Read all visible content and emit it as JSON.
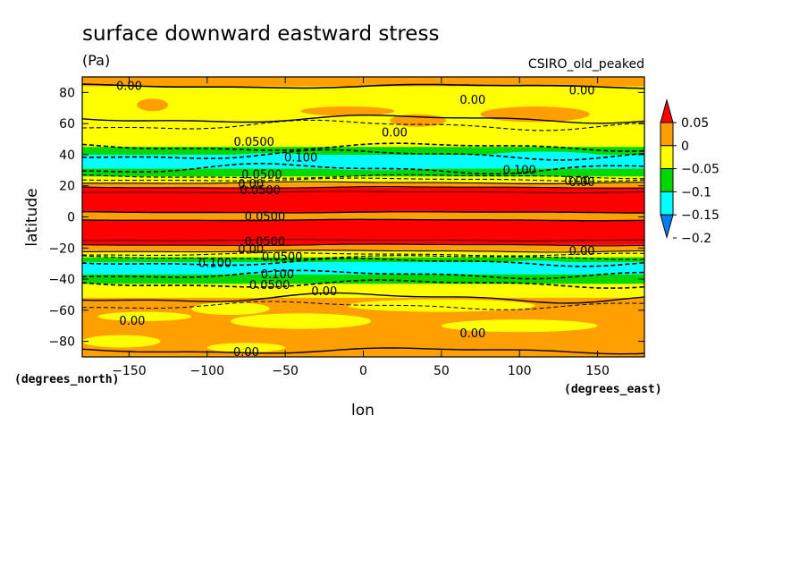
{
  "chart_data": {
    "type": "heatmap",
    "title": "surface downward eastward stress",
    "units": "(Pa)",
    "annotation": "CSIRO_old_peaked",
    "xlabel": "lon",
    "ylabel": "latitude",
    "x_units_label": "(degrees_east)",
    "y_units_label": "(degrees_north)",
    "xlim": [
      -180,
      180
    ],
    "ylim": [
      -90,
      90
    ],
    "x_ticks": [
      -150,
      -100,
      -50,
      0,
      50,
      100,
      150
    ],
    "x_tick_labels": [
      "−150",
      "−100",
      "−50",
      "0",
      "50",
      "100",
      "150"
    ],
    "y_ticks": [
      80,
      60,
      40,
      20,
      0,
      -20,
      -40,
      -60,
      -80
    ],
    "y_tick_labels": [
      "80",
      "60",
      "40",
      "20",
      "0",
      "−20",
      "−40",
      "−60",
      "−80"
    ],
    "colorbar": {
      "levels": [
        0.05,
        0,
        -0.05,
        -0.1,
        -0.15,
        -0.2
      ],
      "level_labels": [
        "0.05",
        "0",
        "−0.05",
        "−0.1",
        "−0.15",
        "−0.2"
      ],
      "colors": [
        "#ff0000",
        "#ff9f00",
        "#ffff00",
        "#00d800",
        "#00ffff",
        "#00a0ff"
      ],
      "over_color": "#ff0000",
      "under_color": "#0080ff"
    },
    "bands": [
      {
        "lat_from": 90,
        "lat_to": 84,
        "value_class": "0 to 0.05",
        "color": "#ff9f00"
      },
      {
        "lat_from": 84,
        "lat_to": 62,
        "value_class": "-0.05 to 0",
        "color": "#ffff00"
      },
      {
        "lat_from": 62,
        "lat_to": 45,
        "value_class": "-0.05 to 0",
        "color": "#ffff00"
      },
      {
        "lat_from": 45,
        "lat_to": 40,
        "value_class": "-0.1 to -0.05",
        "color": "#00d800"
      },
      {
        "lat_from": 40,
        "lat_to": 31,
        "value_class": "-0.15 to -0.1",
        "color": "#00ffff"
      },
      {
        "lat_from": 31,
        "lat_to": 26,
        "value_class": "-0.1 to -0.05",
        "color": "#00d800"
      },
      {
        "lat_from": 26,
        "lat_to": 22,
        "value_class": "-0.05 to 0",
        "color": "#ffff00"
      },
      {
        "lat_from": 22,
        "lat_to": 19,
        "value_class": "0 to 0.05",
        "color": "#ff9f00"
      },
      {
        "lat_from": 19,
        "lat_to": 3,
        "value_class": "> 0.05",
        "color": "#ff0000"
      },
      {
        "lat_from": 3,
        "lat_to": -2,
        "value_class": "0 to 0.05",
        "color": "#ff9f00"
      },
      {
        "lat_from": -2,
        "lat_to": -18,
        "value_class": "> 0.05",
        "color": "#ff0000"
      },
      {
        "lat_from": -18,
        "lat_to": -22,
        "value_class": "0 to 0.05",
        "color": "#ff9f00"
      },
      {
        "lat_from": -22,
        "lat_to": -26,
        "value_class": "-0.05 to 0",
        "color": "#ffff00"
      },
      {
        "lat_from": -26,
        "lat_to": -29,
        "value_class": "-0.1 to -0.05",
        "color": "#00d800"
      },
      {
        "lat_from": -29,
        "lat_to": -37,
        "value_class": "-0.15 to -0.1",
        "color": "#00ffff"
      },
      {
        "lat_from": -37,
        "lat_to": -43,
        "value_class": "-0.1 to -0.05",
        "color": "#00d800"
      },
      {
        "lat_from": -43,
        "lat_to": -52,
        "value_class": "-0.05 to 0",
        "color": "#ffff00"
      },
      {
        "lat_from": -52,
        "lat_to": -90,
        "value_class": "0 to 0.05",
        "color": "#ff9f00"
      }
    ],
    "contour_labels": [
      "0.00",
      "0.00",
      "0.00",
      "0.00",
      "0.00",
      "0.00",
      "0.00",
      "0.00",
      "0.00",
      "0.0500",
      "0.0500",
      "0.0500",
      "0.0500",
      "0.0500",
      "0.0500",
      "0.0500",
      "0.100",
      "0.100",
      "0.100",
      "0.100",
      "0.00",
      "0.00",
      "0.00",
      "0.00"
    ]
  }
}
